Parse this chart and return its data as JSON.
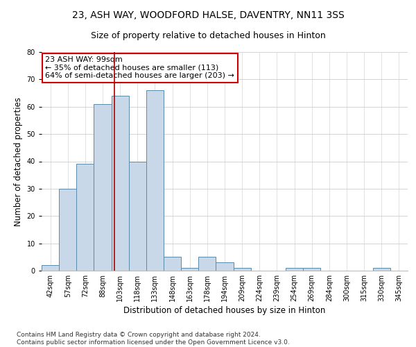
{
  "title": "23, ASH WAY, WOODFORD HALSE, DAVENTRY, NN11 3SS",
  "subtitle": "Size of property relative to detached houses in Hinton",
  "xlabel": "Distribution of detached houses by size in Hinton",
  "ylabel": "Number of detached properties",
  "categories": [
    "42sqm",
    "57sqm",
    "72sqm",
    "88sqm",
    "103sqm",
    "118sqm",
    "133sqm",
    "148sqm",
    "163sqm",
    "178sqm",
    "194sqm",
    "209sqm",
    "224sqm",
    "239sqm",
    "254sqm",
    "269sqm",
    "284sqm",
    "300sqm",
    "315sqm",
    "330sqm",
    "345sqm"
  ],
  "values": [
    2,
    30,
    39,
    61,
    64,
    40,
    66,
    5,
    1,
    5,
    3,
    1,
    0,
    0,
    1,
    1,
    0,
    0,
    0,
    1,
    0
  ],
  "bar_color": "#c8d8e8",
  "bar_edge_color": "#5a8aaa",
  "vline_x": 3.67,
  "vline_color": "#aa0000",
  "annotation_text": "23 ASH WAY: 99sqm\n← 35% of detached houses are smaller (113)\n64% of semi-detached houses are larger (203) →",
  "annotation_box_color": "#ffffff",
  "annotation_box_edge_color": "#cc0000",
  "ylim": [
    0,
    80
  ],
  "yticks": [
    0,
    10,
    20,
    30,
    40,
    50,
    60,
    70,
    80
  ],
  "grid_color": "#cccccc",
  "background_color": "#ffffff",
  "footer_line1": "Contains HM Land Registry data © Crown copyright and database right 2024.",
  "footer_line2": "Contains public sector information licensed under the Open Government Licence v3.0.",
  "title_fontsize": 10,
  "subtitle_fontsize": 9,
  "axis_label_fontsize": 8.5,
  "tick_fontsize": 7,
  "annotation_fontsize": 8,
  "footer_fontsize": 6.5
}
